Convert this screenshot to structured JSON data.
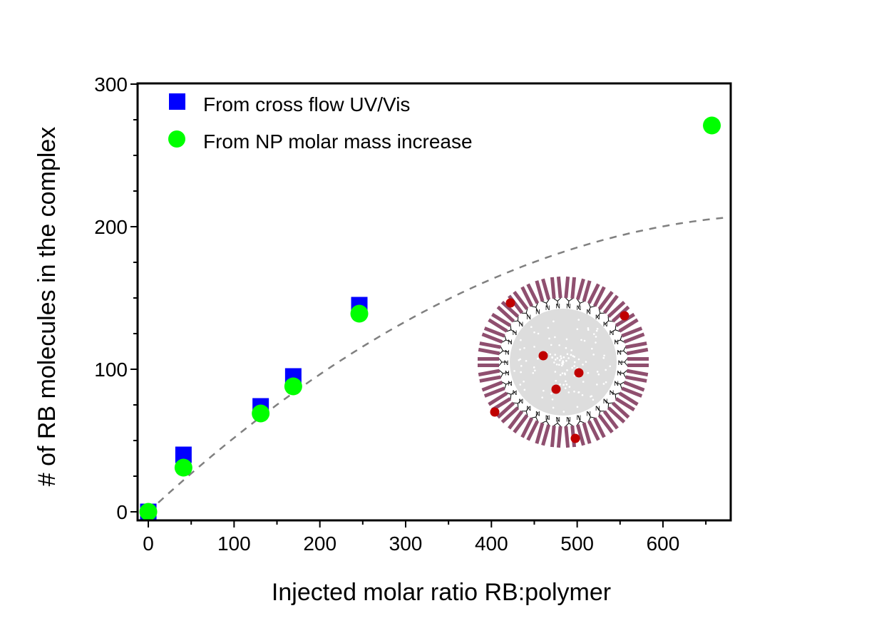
{
  "chart_data": {
    "type": "scatter",
    "title": "",
    "xlabel": "Injected molar ratio RB:polymer",
    "ylabel": "# of RB molecules in the complex",
    "xlim": [
      -12.5,
      679
    ],
    "ylim": [
      -6,
      300.5
    ],
    "xticks": [
      0,
      100,
      200,
      300,
      400,
      500,
      600
    ],
    "yticks": [
      0,
      100,
      200,
      300
    ],
    "grid": false,
    "legend_placement": "top-left",
    "series": [
      {
        "name": "From cross flow UV/Vis",
        "marker": "square",
        "color": "#0000ff",
        "x": [
          0,
          41,
          131,
          169,
          246
        ],
        "y": [
          0,
          40,
          74,
          95,
          145
        ]
      },
      {
        "name": "From NP molar mass increase",
        "marker": "circle",
        "color": "#00ff00",
        "x": [
          0,
          41,
          131,
          169,
          246,
          657
        ],
        "y": [
          0,
          31,
          69,
          88,
          139,
          271
        ]
      }
    ],
    "fit": {
      "style": "dashed",
      "color": "#808080",
      "model": "y = a*x - b*x^2",
      "a": 0.5563,
      "b": 0.000371,
      "x_range": [
        0,
        670
      ]
    },
    "inset": {
      "description_marker_label": "N"
    }
  }
}
